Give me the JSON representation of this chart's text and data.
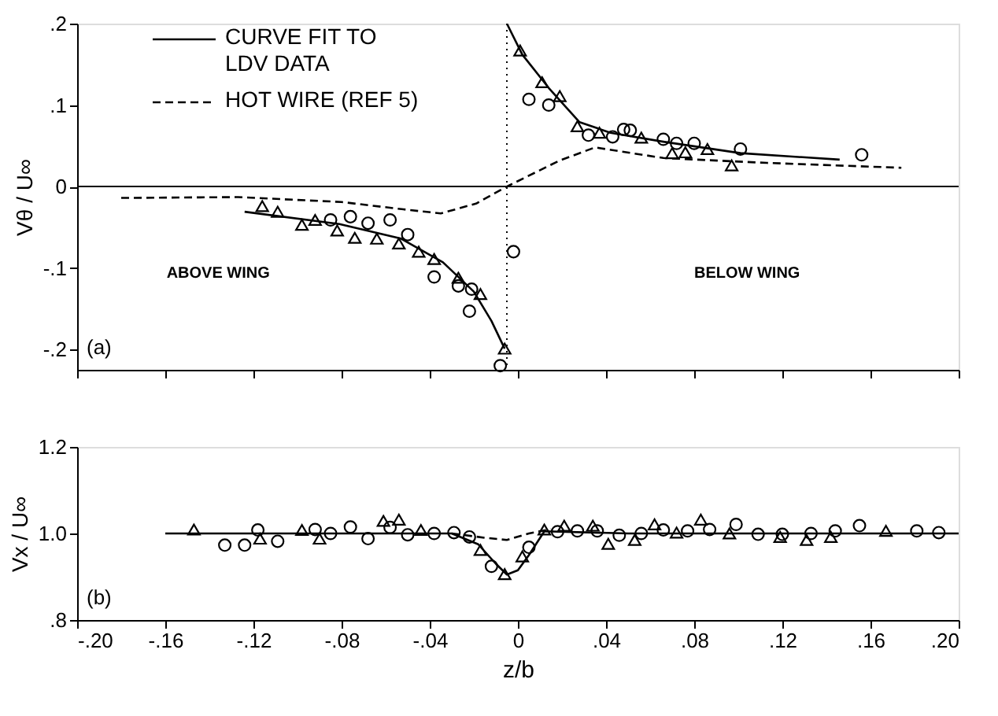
{
  "chart_data": [
    {
      "type": "scatter",
      "ylabel": "Vθ / U∞",
      "xlim": [
        -0.2,
        0.2
      ],
      "ylim": [
        -0.225,
        0.2
      ],
      "xticks": [
        -0.2,
        -0.16,
        -0.12,
        -0.08,
        -0.04,
        0,
        0.04,
        0.08,
        0.12,
        0.16,
        0.2
      ],
      "yticks": [
        {
          "value": -0.2,
          "label": "-.2"
        },
        {
          "value": -0.1,
          "label": "-.1"
        },
        0,
        {
          "value": 0.1,
          "label": ".1"
        },
        {
          "value": 0.2,
          "label": ".2"
        }
      ],
      "tick_labels": "y",
      "grid": false,
      "legend": "top left",
      "ref_lines": [
        {
          "axis": "y",
          "value": 0,
          "color": "#000000",
          "line_style": "solid"
        },
        {
          "axis": "x",
          "value": -0.005,
          "color": "#000000",
          "line_style": "dotted"
        }
      ],
      "annotations": [
        "ABOVE WING",
        "BELOW WING",
        "(a)"
      ],
      "series": [
        {
          "name": "CURVE FIT TO\nLDV DATA",
          "type": "line",
          "line_style": "solid",
          "marker": "none",
          "color": "#000000",
          "x": [
            -0.124,
            -0.081,
            -0.053,
            -0.034,
            -0.02,
            -0.012,
            -0.006
          ],
          "values": [
            -0.031,
            -0.046,
            -0.064,
            -0.093,
            -0.129,
            -0.165,
            -0.199
          ]
        },
        {
          "type": "line",
          "line_style": "solid",
          "marker": "none",
          "color": "#000000",
          "x": [
            -0.005,
            0.002,
            0.014,
            0.028,
            0.042,
            0.066,
            0.101,
            0.146
          ],
          "values": [
            0.2,
            0.162,
            0.121,
            0.079,
            0.066,
            0.055,
            0.041,
            0.033
          ]
        },
        {
          "name": "HOT WIRE (REF 5)",
          "type": "line",
          "line_style": "dashed",
          "marker": "none",
          "color": "#000000",
          "x": [
            -0.18,
            -0.127,
            -0.08,
            -0.052,
            -0.035,
            -0.019,
            -0.005,
            0.019,
            0.035,
            0.066,
            0.113,
            0.174
          ],
          "values": [
            -0.014,
            -0.013,
            -0.019,
            -0.028,
            -0.033,
            -0.021,
            0,
            0.032,
            0.048,
            0.035,
            0.029,
            0.023
          ]
        },
        {
          "marker": "triangle",
          "color": "#000000",
          "x": [
            -0.116,
            -0.109,
            -0.098,
            -0.092,
            -0.082,
            -0.074,
            -0.064,
            -0.054,
            -0.045,
            -0.038,
            -0.027,
            -0.017,
            -0.006,
            0.001,
            0.011,
            0.019,
            0.027,
            0.037,
            0.056,
            0.07,
            0.076,
            0.086,
            0.097
          ],
          "values": [
            -0.024,
            -0.031,
            -0.047,
            -0.041,
            -0.054,
            -0.063,
            -0.064,
            -0.07,
            -0.08,
            -0.089,
            -0.112,
            -0.132,
            -0.199,
            0.167,
            0.128,
            0.111,
            0.074,
            0.066,
            0.06,
            0.041,
            0.042,
            0.046,
            0.026
          ]
        },
        {
          "marker": "circle",
          "color": "#000000",
          "x": [
            -0.085,
            -0.076,
            -0.068,
            -0.058,
            -0.05,
            -0.038,
            -0.027,
            -0.021,
            -0.022,
            -0.008,
            -0.002,
            0.005,
            0.014,
            0.032,
            0.043,
            0.048,
            0.051,
            0.066,
            0.072,
            0.08,
            0.101,
            0.156
          ],
          "values": [
            -0.041,
            -0.037,
            -0.045,
            -0.041,
            -0.059,
            -0.111,
            -0.122,
            -0.126,
            -0.153,
            -0.22,
            -0.08,
            0.107,
            0.1,
            0.063,
            0.061,
            0.07,
            0.069,
            0.058,
            0.053,
            0.053,
            0.046,
            0.039
          ]
        }
      ]
    },
    {
      "type": "scatter",
      "xlabel": "z/b",
      "ylabel": "Vx / U∞",
      "xlim": [
        -0.2,
        0.2
      ],
      "ylim": [
        0.8,
        1.2
      ],
      "xticks": [
        {
          "value": -0.2,
          "label": "-.20"
        },
        {
          "value": -0.16,
          "label": "-.16"
        },
        {
          "value": -0.12,
          "label": "-.12"
        },
        {
          "value": -0.08,
          "label": "-.08"
        },
        {
          "value": -0.04,
          "label": "-.04"
        },
        0,
        {
          "value": 0.04,
          "label": ".04"
        },
        {
          "value": 0.08,
          "label": ".08"
        },
        {
          "value": 0.12,
          "label": ".12"
        },
        {
          "value": 0.16,
          "label": ".16"
        },
        {
          "value": 0.2,
          "label": ".20"
        }
      ],
      "yticks": [
        {
          "value": 0.8,
          "label": ".8"
        },
        {
          "value": 1.0,
          "label": "1.0"
        },
        {
          "value": 1.2,
          "label": "1.2"
        }
      ],
      "grid": false,
      "annotations": [
        "(b)"
      ],
      "series": [
        {
          "type": "line",
          "line_style": "solid",
          "marker": "none",
          "color": "#000000",
          "x": [
            -0.16,
            -0.03,
            -0.018,
            -0.01,
            -0.005,
            0,
            0.005,
            0.012,
            0.05,
            0.2
          ],
          "values": [
            1.0,
            1.0,
            0.975,
            0.93,
            0.905,
            0.915,
            0.95,
            1.005,
            1.0,
            1.0
          ]
        },
        {
          "type": "line",
          "line_style": "dashed",
          "marker": "none",
          "color": "#000000",
          "x": [
            -0.03,
            -0.015,
            -0.005,
            0.005,
            0.015
          ],
          "values": [
            1.0,
            0.99,
            0.985,
            1.0,
            1.01
          ]
        },
        {
          "marker": "triangle",
          "color": "#000000",
          "x": [
            -0.147,
            -0.117,
            -0.098,
            -0.09,
            -0.061,
            -0.054,
            -0.044,
            -0.017,
            -0.006,
            0.002,
            0.012,
            0.021,
            0.034,
            0.041,
            0.053,
            0.062,
            0.072,
            0.083,
            0.096,
            0.119,
            0.131,
            0.142,
            0.167
          ],
          "values": [
            1.009,
            0.988,
            1.008,
            0.988,
            1.029,
            1.032,
            1.008,
            0.962,
            0.906,
            0.947,
            1.009,
            1.018,
            1.018,
            0.976,
            0.985,
            1.021,
            1.002,
            1.032,
            1.0,
            0.992,
            0.985,
            0.992,
            1.006
          ]
        },
        {
          "marker": "circle",
          "color": "#000000",
          "x": [
            -0.133,
            -0.124,
            -0.118,
            -0.109,
            -0.092,
            -0.085,
            -0.076,
            -0.068,
            -0.058,
            -0.05,
            -0.038,
            -0.029,
            -0.022,
            -0.012,
            0.005,
            0.018,
            0.027,
            0.036,
            0.046,
            0.056,
            0.066,
            0.077,
            0.087,
            0.099,
            0.109,
            0.12,
            0.133,
            0.144,
            0.155,
            0.181,
            0.191
          ],
          "values": [
            0.973,
            0.973,
            1.008,
            0.982,
            1.009,
            1.0,
            1.015,
            0.988,
            1.014,
            0.997,
            1.0,
            1.002,
            0.992,
            0.924,
            0.968,
            1.004,
            1.006,
            1.006,
            0.996,
            1.0,
            1.008,
            1.006,
            1.009,
            1.021,
            0.998,
            0.998,
            1.0,
            1.006,
            1.018,
            1.006,
            1.002
          ]
        }
      ]
    }
  ]
}
